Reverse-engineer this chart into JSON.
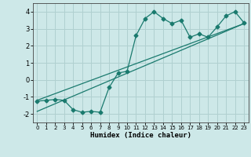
{
  "title": "",
  "xlabel": "Humidex (Indice chaleur)",
  "bg_color": "#cde8e8",
  "grid_color": "#b0d0d0",
  "line_color": "#1a7a6e",
  "xlim": [
    -0.5,
    23.5
  ],
  "ylim": [
    -2.5,
    4.5
  ],
  "xticks": [
    0,
    1,
    2,
    3,
    4,
    5,
    6,
    7,
    8,
    9,
    10,
    11,
    12,
    13,
    14,
    15,
    16,
    17,
    18,
    19,
    20,
    21,
    22,
    23
  ],
  "yticks": [
    -2,
    -1,
    0,
    1,
    2,
    3,
    4
  ],
  "line1_x": [
    0,
    1,
    2,
    3,
    4,
    5,
    6,
    7,
    8,
    9,
    10,
    11,
    12,
    13,
    14,
    15,
    16,
    17,
    18,
    19,
    20,
    21,
    22,
    23
  ],
  "line1_y": [
    -1.25,
    -1.2,
    -1.15,
    -1.2,
    -1.75,
    -1.9,
    -1.85,
    -1.9,
    -0.45,
    0.4,
    0.5,
    2.6,
    3.6,
    4.0,
    3.6,
    3.3,
    3.5,
    2.5,
    2.7,
    2.5,
    3.1,
    3.75,
    4.0,
    3.35
  ],
  "line2_x": [
    0,
    23
  ],
  "line2_y": [
    -1.2,
    3.3
  ],
  "line3_x": [
    0,
    23
  ],
  "line3_y": [
    -1.85,
    3.3
  ],
  "markersize": 2.5
}
